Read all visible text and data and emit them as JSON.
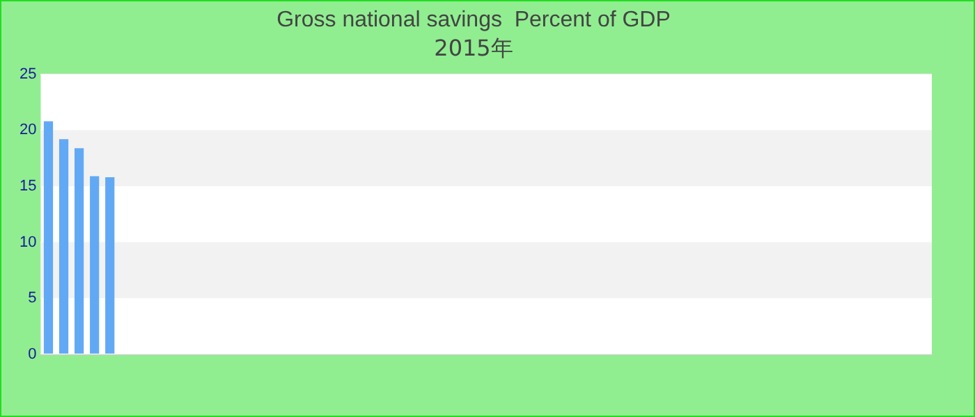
{
  "chart_data": {
    "type": "bar",
    "title": "Gross national savings  Percent of GDP",
    "subtitle": "2015年",
    "categories": [
      null,
      null,
      null,
      null,
      null,
      null,
      null,
      null,
      null,
      null,
      null,
      null,
      null,
      null,
      null,
      null,
      null,
      null,
      null,
      null,
      null,
      null,
      null,
      null,
      null,
      null,
      null,
      null,
      null,
      null,
      null,
      null,
      null,
      null,
      null,
      null,
      null,
      null,
      null,
      null,
      null,
      null,
      null,
      null,
      null,
      null,
      null,
      null,
      null,
      null,
      null,
      null,
      null,
      null,
      null,
      null,
      null,
      null
    ],
    "values": [
      20.8,
      19.2,
      18.4,
      15.9,
      15.8,
      null,
      null,
      null,
      null,
      null,
      null,
      null,
      null,
      null,
      null,
      null,
      null,
      null,
      null,
      null,
      null,
      null,
      null,
      null,
      null,
      null,
      null,
      null,
      null,
      null,
      null,
      null,
      null,
      null,
      null,
      null,
      null,
      null,
      null,
      null,
      null,
      null,
      null,
      null,
      null,
      null,
      null,
      null,
      null,
      null,
      null,
      null,
      null,
      null,
      null,
      null,
      null,
      null
    ],
    "color": "#62a9f5",
    "ylim": [
      0,
      25
    ],
    "yticks": [
      0,
      5,
      10,
      15,
      20,
      25
    ],
    "grid": "y"
  }
}
